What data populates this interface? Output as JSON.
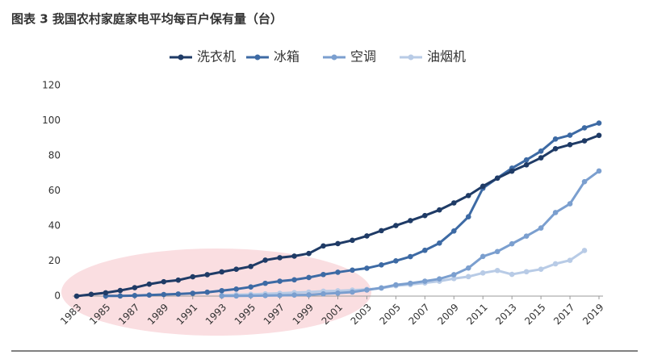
{
  "chart_data": {
    "type": "line",
    "title": "图表 3 我国农村家庭家电平均每百户保有量（台）",
    "x": [
      1983,
      1984,
      1985,
      1986,
      1987,
      1988,
      1989,
      1990,
      1991,
      1992,
      1993,
      1994,
      1995,
      1996,
      1997,
      1998,
      1999,
      2000,
      2001,
      2002,
      2003,
      2004,
      2005,
      2006,
      2007,
      2008,
      2009,
      2010,
      2011,
      2012,
      2013,
      2014,
      2015,
      2016,
      2017,
      2018,
      2019
    ],
    "xlim": [
      1983,
      2019
    ],
    "xticks": [
      1983,
      1985,
      1987,
      1989,
      1991,
      1993,
      1995,
      1997,
      1999,
      2001,
      2003,
      2005,
      2007,
      2009,
      2011,
      2013,
      2015,
      2017,
      2019
    ],
    "ylim": [
      0,
      120
    ],
    "yticks": [
      0,
      20,
      40,
      60,
      80,
      100,
      120
    ],
    "series": [
      {
        "name": "洗衣机",
        "color": "#1f3b66",
        "values": [
          0,
          1,
          1.9,
          3.2,
          4.8,
          6.8,
          8.2,
          9.1,
          11.0,
          12.2,
          13.8,
          15.3,
          16.9,
          20.5,
          21.9,
          22.8,
          24.3,
          28.6,
          29.9,
          31.8,
          34.3,
          37.3,
          40.2,
          43.0,
          45.9,
          49.1,
          53.1,
          57.3,
          62.6,
          67.2,
          71.2,
          74.8,
          78.8,
          84.0,
          86.3,
          88.5,
          91.6
        ]
      },
      {
        "name": "冰箱",
        "color": "#3d6aa4",
        "values": [
          null,
          null,
          0.1,
          0.1,
          0.3,
          0.6,
          0.9,
          1.2,
          1.6,
          2.2,
          3.1,
          4.0,
          5.2,
          7.3,
          8.5,
          9.3,
          10.6,
          12.3,
          13.6,
          14.8,
          15.9,
          17.8,
          20.1,
          22.5,
          26.1,
          30.2,
          37.1,
          45.2,
          61.5,
          67.3,
          72.9,
          77.6,
          82.6,
          89.5,
          91.7,
          95.9,
          98.6
        ]
      },
      {
        "name": "空调",
        "color": "#7b9fcf",
        "values": [
          null,
          null,
          null,
          null,
          null,
          null,
          null,
          null,
          null,
          null,
          0.1,
          0.1,
          0.2,
          0.3,
          0.4,
          0.6,
          0.7,
          1.3,
          1.7,
          2.3,
          3.5,
          4.7,
          6.4,
          7.3,
          8.5,
          9.8,
          12.2,
          16.0,
          22.6,
          25.4,
          29.8,
          34.2,
          38.8,
          47.6,
          52.6,
          65.2,
          71.3
        ]
      },
      {
        "name": "油烟机",
        "color": "#b8cbe6",
        "values": [
          null,
          null,
          null,
          null,
          null,
          null,
          null,
          null,
          null,
          null,
          0.5,
          0.8,
          1.0,
          1.3,
          1.6,
          2.0,
          2.3,
          2.8,
          3.0,
          3.4,
          3.8,
          4.5,
          5.9,
          6.6,
          7.5,
          8.5,
          10.0,
          11.1,
          13.2,
          14.6,
          12.4,
          13.9,
          15.3,
          18.4,
          20.4,
          26.0,
          null
        ]
      }
    ]
  }
}
